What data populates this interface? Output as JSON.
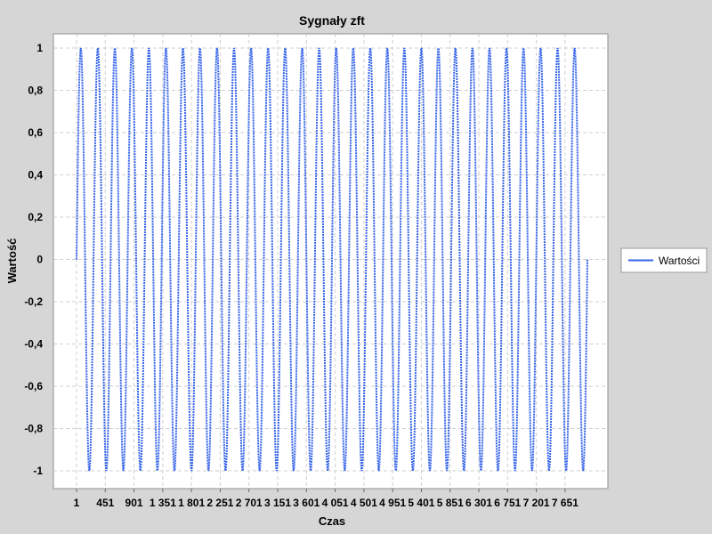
{
  "chart_data": {
    "type": "line",
    "title": "Sygnały zft",
    "xlabel": "Czas",
    "ylabel": "Wartość",
    "ylim": [
      -1,
      1
    ],
    "yticks": [
      {
        "value": 1,
        "label": "1"
      },
      {
        "value": 0.8,
        "label": "0,8"
      },
      {
        "value": 0.6,
        "label": "0,6"
      },
      {
        "value": 0.4,
        "label": "0,4"
      },
      {
        "value": 0.2,
        "label": "0,2"
      },
      {
        "value": 0,
        "label": "0"
      },
      {
        "value": -0.2,
        "label": "-0,2"
      },
      {
        "value": -0.4,
        "label": "-0,4"
      },
      {
        "value": -0.6,
        "label": "-0,6"
      },
      {
        "value": -0.8,
        "label": "-0,8"
      },
      {
        "value": -1,
        "label": "-1"
      }
    ],
    "xlim": [
      1,
      2001
    ],
    "xticks": [
      {
        "value": 1,
        "label": "1"
      },
      {
        "value": 451,
        "label": "451"
      },
      {
        "value": 901,
        "label": "901"
      },
      {
        "value": 1351,
        "label": "1 351"
      },
      {
        "value": 1801,
        "label": "1 801"
      },
      {
        "value": 2251,
        "label": "2 251"
      },
      {
        "value": 2701,
        "label": "2 701"
      },
      {
        "value": 3151,
        "label": "3 151"
      },
      {
        "value": 3601,
        "label": "3 601"
      },
      {
        "value": 4051,
        "label": "4 051"
      },
      {
        "value": 4501,
        "label": "4 501"
      },
      {
        "value": 4951,
        "label": "4 951"
      },
      {
        "value": 5401,
        "label": "5 401"
      },
      {
        "value": 5851,
        "label": "5 851"
      },
      {
        "value": 6301,
        "label": "6 301"
      },
      {
        "value": 6751,
        "label": "6 751"
      },
      {
        "value": 7201,
        "label": "7 201"
      },
      {
        "value": 7651,
        "label": "7 651"
      }
    ],
    "xlim_ticks": [
      1,
      8001
    ],
    "series": [
      {
        "name": "Wartości",
        "color": "#3563e9",
        "waveform": "sine",
        "amplitude": 1,
        "cycles": 30,
        "x_start": 1,
        "x_end": 8001,
        "points_per_cycle": 60
      }
    ],
    "grid": true,
    "legend": "right"
  }
}
